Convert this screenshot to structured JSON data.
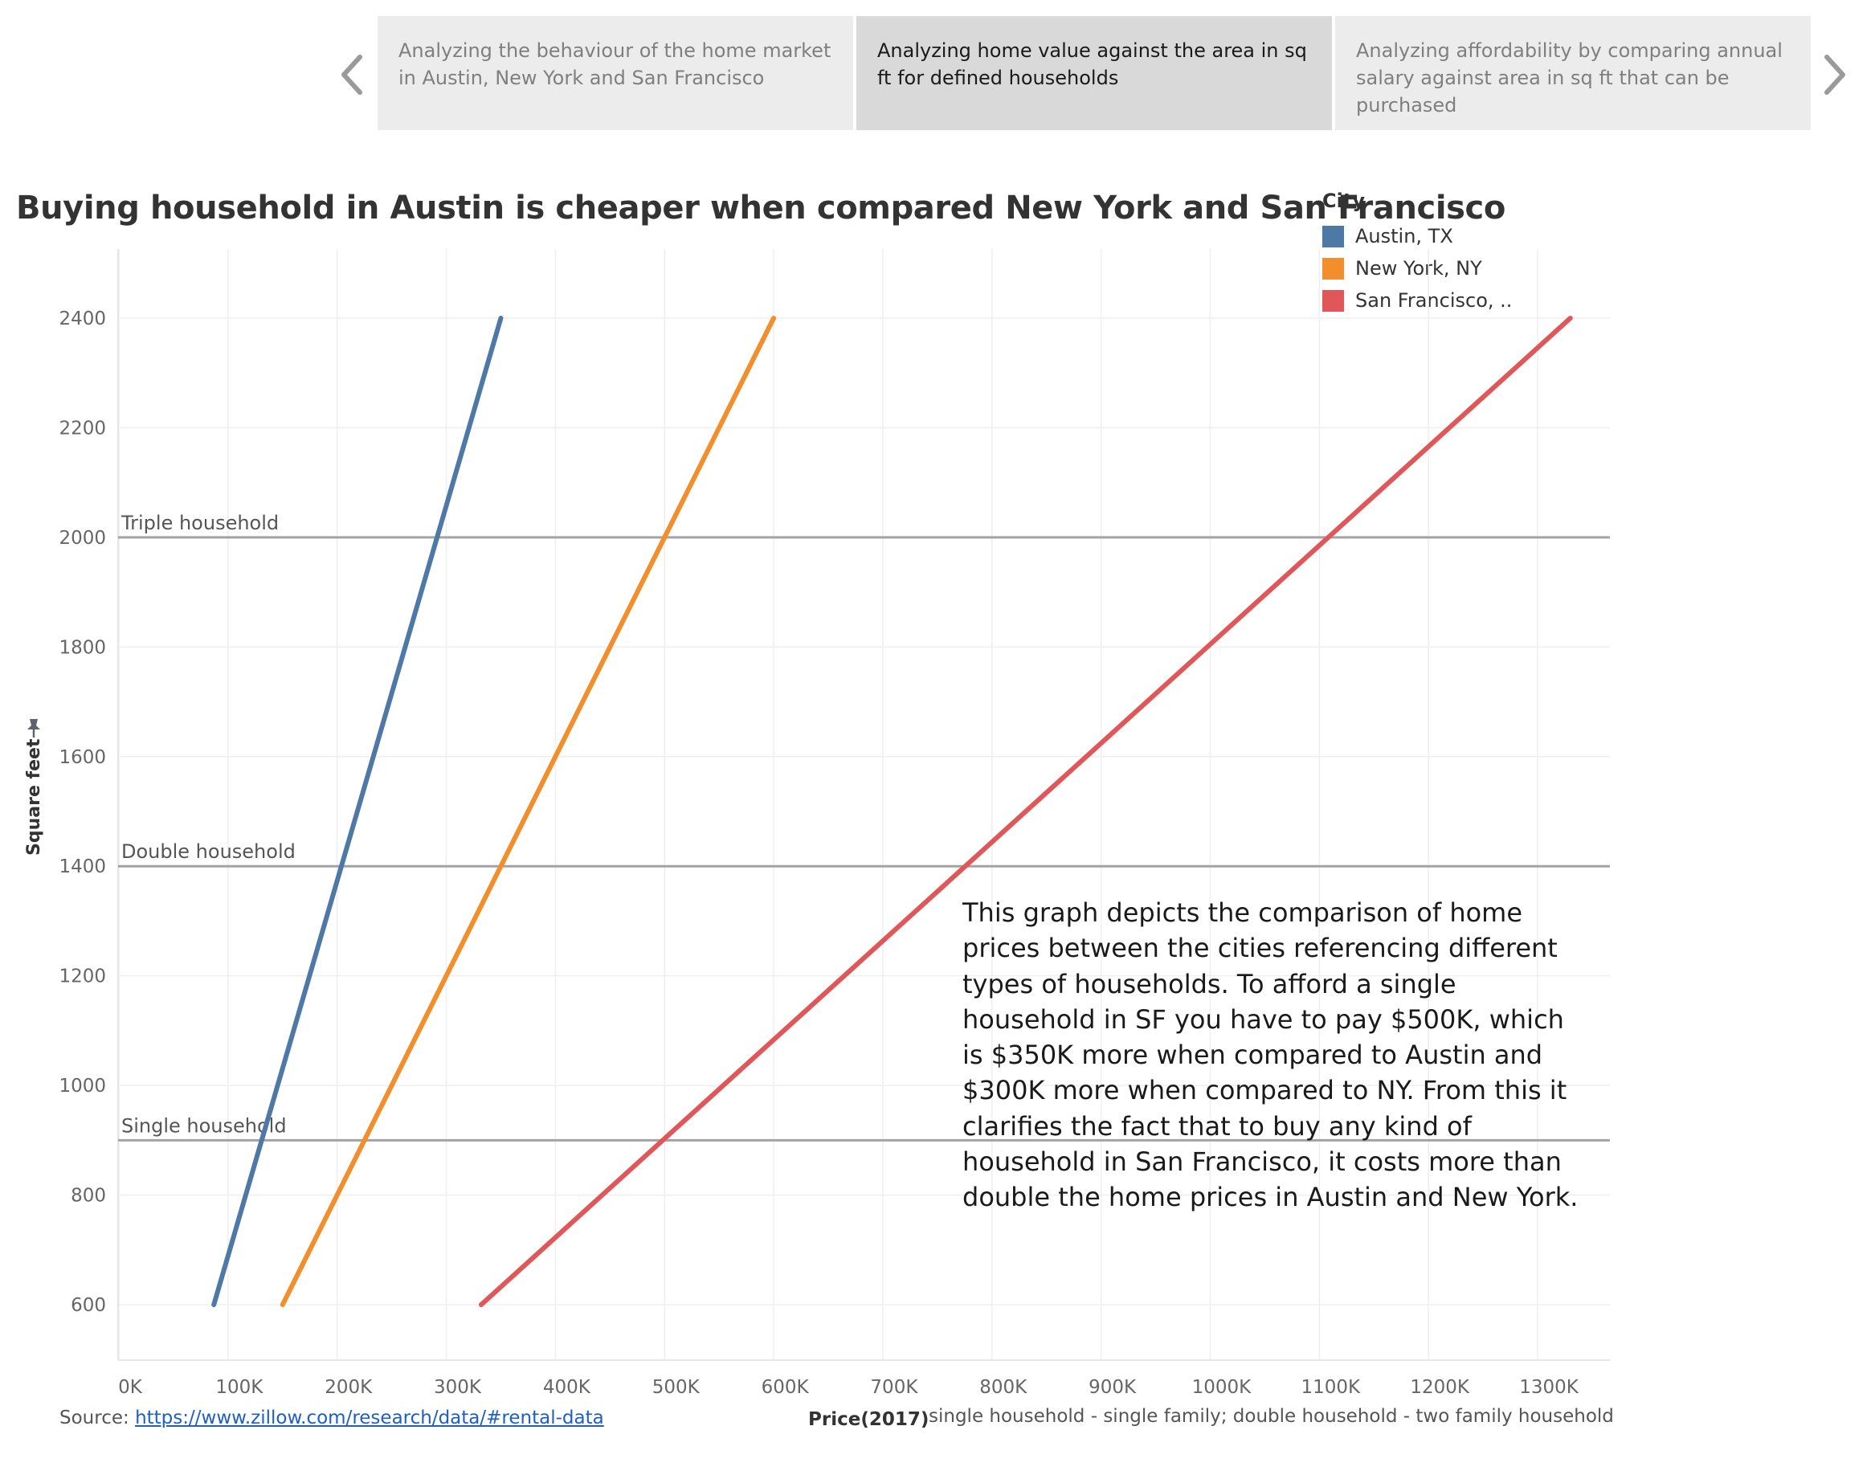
{
  "story": {
    "prev_label": "Previous",
    "next_label": "Next",
    "tabs": [
      {
        "label": "Analyzing the behaviour of the home market in Austin, New York and San Francisco",
        "active": false
      },
      {
        "label": "Analyzing home value against the area in sq ft for defined households",
        "active": true
      },
      {
        "label": "Analyzing affordability by comparing annual salary against area in sq ft that can be purchased",
        "active": false
      }
    ]
  },
  "title": "Buying household in Austin is cheaper when compared New York and San Francisco",
  "legend": {
    "title": "City",
    "items": [
      {
        "label": "Austin, TX",
        "color": "#4e79a7"
      },
      {
        "label": "New York, NY",
        "color": "#f28e2b"
      },
      {
        "label": "San Francisco, ..",
        "color": "#e15759"
      }
    ]
  },
  "annotation": "This graph depicts the comparison of home prices between the cities referencing different types of households. To afford a single household in SF you have to pay $500K, which is $350K  more when compared to Austin and $300K more when compared to NY. From this it clarifies the fact that to buy any kind of household in San Francisco, it costs more than double the home prices in Austin and New York.",
  "source": {
    "prefix": "Source: ",
    "link_text": "https://www.zillow.com/research/data/#rental-data"
  },
  "x_axis_note": "single household - single family; double household - two family household",
  "icons": {
    "pin": "pin-icon",
    "prev": "chevron-left-icon",
    "next": "chevron-right-icon"
  },
  "chart_data": {
    "type": "line",
    "xlabel": "Price(2017)",
    "ylabel": "Square feet",
    "xlim": [
      0,
      1400000
    ],
    "ylim": [
      500,
      2450
    ],
    "x_ticks": [
      0,
      100000,
      200000,
      300000,
      400000,
      500000,
      600000,
      700000,
      800000,
      900000,
      1000000,
      1100000,
      1200000,
      1300000
    ],
    "x_tick_labels": [
      "0K",
      "100K",
      "200K",
      "300K",
      "400K",
      "500K",
      "600K",
      "700K",
      "800K",
      "900K",
      "1000K",
      "1100K",
      "1200K",
      "1300K"
    ],
    "y_ticks": [
      600,
      800,
      1000,
      1200,
      1400,
      1600,
      1800,
      2000,
      2200,
      2400
    ],
    "y_tick_labels": [
      "600",
      "800",
      "1000",
      "1200",
      "1400",
      "1600",
      "1800",
      "2000",
      "2200",
      "2400"
    ],
    "grid": true,
    "legend_position": "top-right",
    "series": [
      {
        "name": "Austin, TX",
        "color": "#4e79a7",
        "x": [
          87000,
          350000
        ],
        "y": [
          600,
          2400
        ]
      },
      {
        "name": "New York, NY",
        "color": "#f28e2b",
        "x": [
          150000,
          600000
        ],
        "y": [
          600,
          2400
        ]
      },
      {
        "name": "San Francisco, ..",
        "color": "#e15759",
        "x": [
          332000,
          1330000
        ],
        "y": [
          600,
          2400
        ]
      }
    ],
    "reference_lines": [
      {
        "label": "Single household",
        "y": 900
      },
      {
        "label": "Double household",
        "y": 1400
      },
      {
        "label": "Triple household",
        "y": 2000
      }
    ]
  }
}
